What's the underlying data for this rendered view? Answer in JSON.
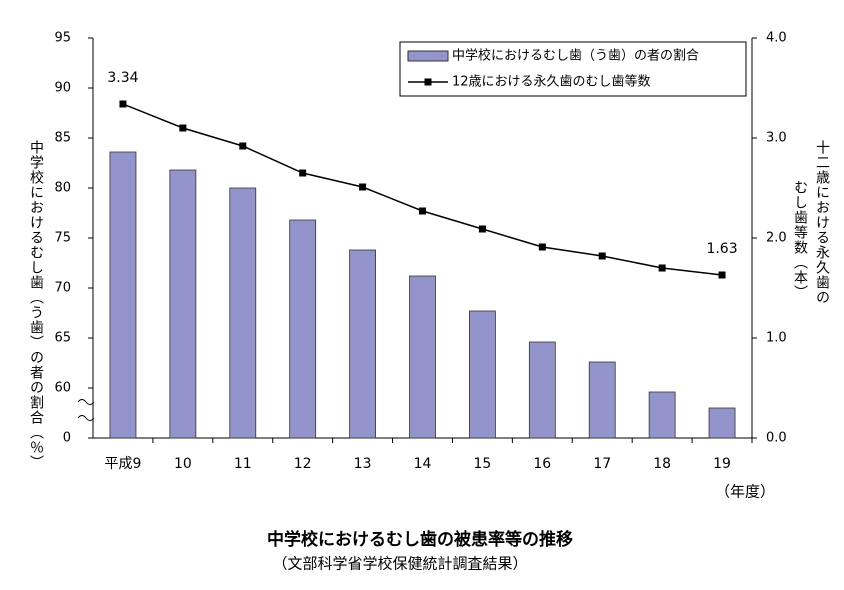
{
  "chart_data": {
    "type": "bar_line",
    "title": "中学校におけるむし歯の被患率等の推移",
    "subtitle": "（文部科学省学校保健統計調査結果）",
    "x_label": "（年度）",
    "y_label": "中学校におけるむし歯（う歯）の者の割合（％）",
    "y2_label": [
      "十二歳における永久歯の",
      "むし歯等数（本）"
    ],
    "categories": [
      "平成9",
      "10",
      "11",
      "12",
      "13",
      "14",
      "15",
      "16",
      "17",
      "18",
      "19"
    ],
    "series": [
      {
        "name": "中学校におけるむし歯（う歯）の者の割合",
        "type": "bar",
        "color": "#9494cc",
        "values": [
          83.6,
          81.8,
          80.0,
          76.8,
          73.8,
          71.2,
          67.7,
          64.6,
          62.6,
          59.6,
          58.0
        ]
      },
      {
        "name": "12歳における永久歯のむし歯等数",
        "type": "line",
        "axis": "y2",
        "color": "#000000",
        "values": [
          3.34,
          3.1,
          2.92,
          2.65,
          2.51,
          2.27,
          2.09,
          1.91,
          1.82,
          1.7,
          1.63
        ],
        "value_labels": [
          "3.34",
          null,
          null,
          null,
          null,
          null,
          null,
          null,
          null,
          null,
          "1.63"
        ]
      }
    ],
    "ylim": [
      0,
      95
    ],
    "y_break": [
      0,
      55
    ],
    "yticks": [
      0,
      60,
      65,
      70,
      75,
      80,
      85,
      90,
      95
    ],
    "y2lim": [
      0,
      4
    ],
    "y2ticks": [
      {
        "value": 0,
        "label": "0.0"
      },
      {
        "value": 1,
        "label": "1.0"
      },
      {
        "value": 2,
        "label": "2.0"
      },
      {
        "value": 3,
        "label": "3.0"
      },
      {
        "value": 4,
        "label": "4.0"
      }
    ],
    "legend": "upper right"
  }
}
